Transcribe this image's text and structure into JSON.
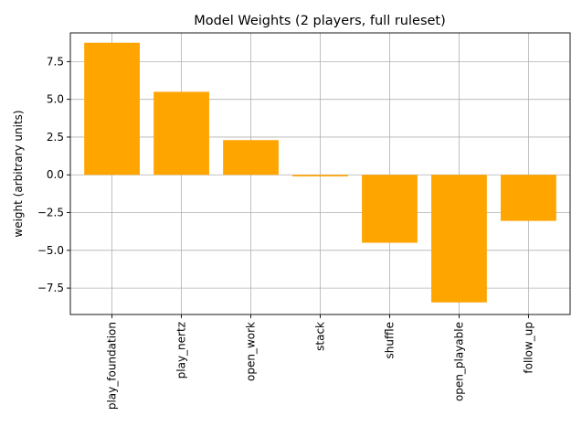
{
  "chart_data": {
    "type": "bar",
    "title": "Model Weights (2 players, full ruleset)",
    "xlabel": "",
    "ylabel": "weight (arbitrary units)",
    "categories": [
      "play_foundation",
      "play_nertz",
      "open_work",
      "stack",
      "shuffle",
      "open_playable",
      "follow_up"
    ],
    "values": [
      8.75,
      5.5,
      2.3,
      -0.1,
      -4.5,
      -8.45,
      -3.05
    ],
    "ylim": [
      -9.25,
      9.4
    ],
    "yticks": [
      -7.5,
      -5.0,
      -2.5,
      0.0,
      2.5,
      5.0,
      7.5
    ],
    "ytick_labels": [
      "−7.5",
      "−5.0",
      "−2.5",
      "0.0",
      "2.5",
      "5.0",
      "7.5"
    ],
    "bar_color": "#ffa500",
    "grid": true,
    "legend": "none"
  }
}
